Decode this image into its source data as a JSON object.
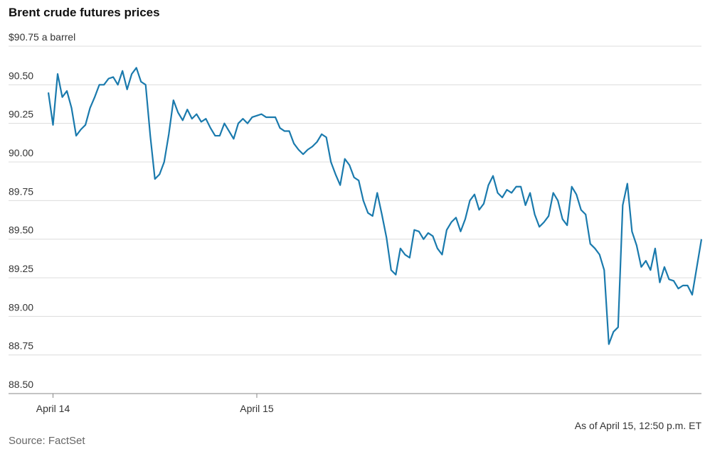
{
  "chart_data": {
    "type": "line",
    "title": "Brent crude futures prices",
    "note": "As of April 15, 12:50 p.m. ET",
    "source": "Source: FactSet",
    "color": "#1a7aad",
    "grid": true,
    "ylim": [
      88.5,
      90.75
    ],
    "yticks": [
      {
        "value": 88.5,
        "label": "88.50"
      },
      88.75,
      {
        "value": 89,
        "label": "89.00"
      },
      89.25,
      {
        "value": 89.5,
        "label": "89.50"
      },
      89.75,
      {
        "value": 90,
        "label": "90.00"
      },
      90.25,
      {
        "value": 90.5,
        "label": "90.50"
      },
      {
        "value": 90.75,
        "label": "$90.75 a barrel"
      }
    ],
    "categories": [
      null,
      "April 14",
      null,
      null,
      null,
      null,
      null,
      null,
      null,
      null,
      null,
      null,
      null,
      null,
      null,
      null,
      null,
      null,
      null,
      null,
      null,
      null,
      null,
      null,
      null,
      null,
      null,
      null,
      null,
      null,
      null,
      null,
      null,
      null,
      null,
      null,
      null,
      null,
      null,
      null,
      null,
      null,
      null,
      null,
      null,
      "April 15",
      null,
      null,
      null,
      null,
      null,
      null,
      null,
      null,
      null,
      null,
      null,
      null,
      null,
      null,
      null,
      null,
      null,
      null,
      null,
      null,
      null,
      null,
      null,
      null,
      null,
      null,
      null,
      null,
      null,
      null,
      null,
      null,
      null,
      null,
      null,
      null,
      null,
      null,
      null,
      null,
      null,
      null,
      null,
      null,
      null,
      null,
      null,
      null,
      null,
      null,
      null,
      null,
      null,
      null,
      null,
      null,
      null,
      null,
      null,
      null,
      null,
      null,
      null,
      null,
      null,
      null,
      null,
      null,
      null,
      null,
      null,
      null,
      null,
      null,
      null,
      null,
      null,
      null,
      null,
      null,
      null,
      null,
      null,
      null,
      null,
      null,
      null,
      null,
      null,
      null,
      null,
      null,
      null,
      null,
      null,
      null
    ],
    "values": [
      90.45,
      90.24,
      90.57,
      90.42,
      90.46,
      90.35,
      90.17,
      90.21,
      90.24,
      90.35,
      90.42,
      90.5,
      90.5,
      90.54,
      90.55,
      90.5,
      90.59,
      90.47,
      90.57,
      90.61,
      90.52,
      90.5,
      90.17,
      89.89,
      89.92,
      90.0,
      90.18,
      90.4,
      90.32,
      90.27,
      90.34,
      90.28,
      90.31,
      90.26,
      90.28,
      90.22,
      90.17,
      90.17,
      90.25,
      90.2,
      90.15,
      90.25,
      90.28,
      90.25,
      90.29,
      90.3,
      90.31,
      90.29,
      90.29,
      90.29,
      90.22,
      90.2,
      90.2,
      90.12,
      90.08,
      90.05,
      90.08,
      90.1,
      90.13,
      90.18,
      90.16,
      90.0,
      89.92,
      89.85,
      90.02,
      89.98,
      89.9,
      89.88,
      89.75,
      89.67,
      89.65,
      89.8,
      89.66,
      89.51,
      89.3,
      89.27,
      89.44,
      89.4,
      89.38,
      89.56,
      89.55,
      89.5,
      89.54,
      89.52,
      89.44,
      89.4,
      89.56,
      89.61,
      89.64,
      89.55,
      89.63,
      89.75,
      89.79,
      89.69,
      89.73,
      89.85,
      89.91,
      89.8,
      89.77,
      89.82,
      89.8,
      89.84,
      89.84,
      89.72,
      89.8,
      89.66,
      89.58,
      89.61,
      89.65,
      89.8,
      89.75,
      89.63,
      89.59,
      89.84,
      89.79,
      89.69,
      89.66,
      89.47,
      89.44,
      89.4,
      89.3,
      88.82,
      88.9,
      88.93,
      89.72,
      89.86,
      89.55,
      89.46,
      89.32,
      89.36,
      89.3,
      89.44,
      89.22,
      89.32,
      89.24,
      89.23,
      89.18,
      89.2,
      89.2,
      89.14,
      89.32,
      89.5
    ]
  }
}
